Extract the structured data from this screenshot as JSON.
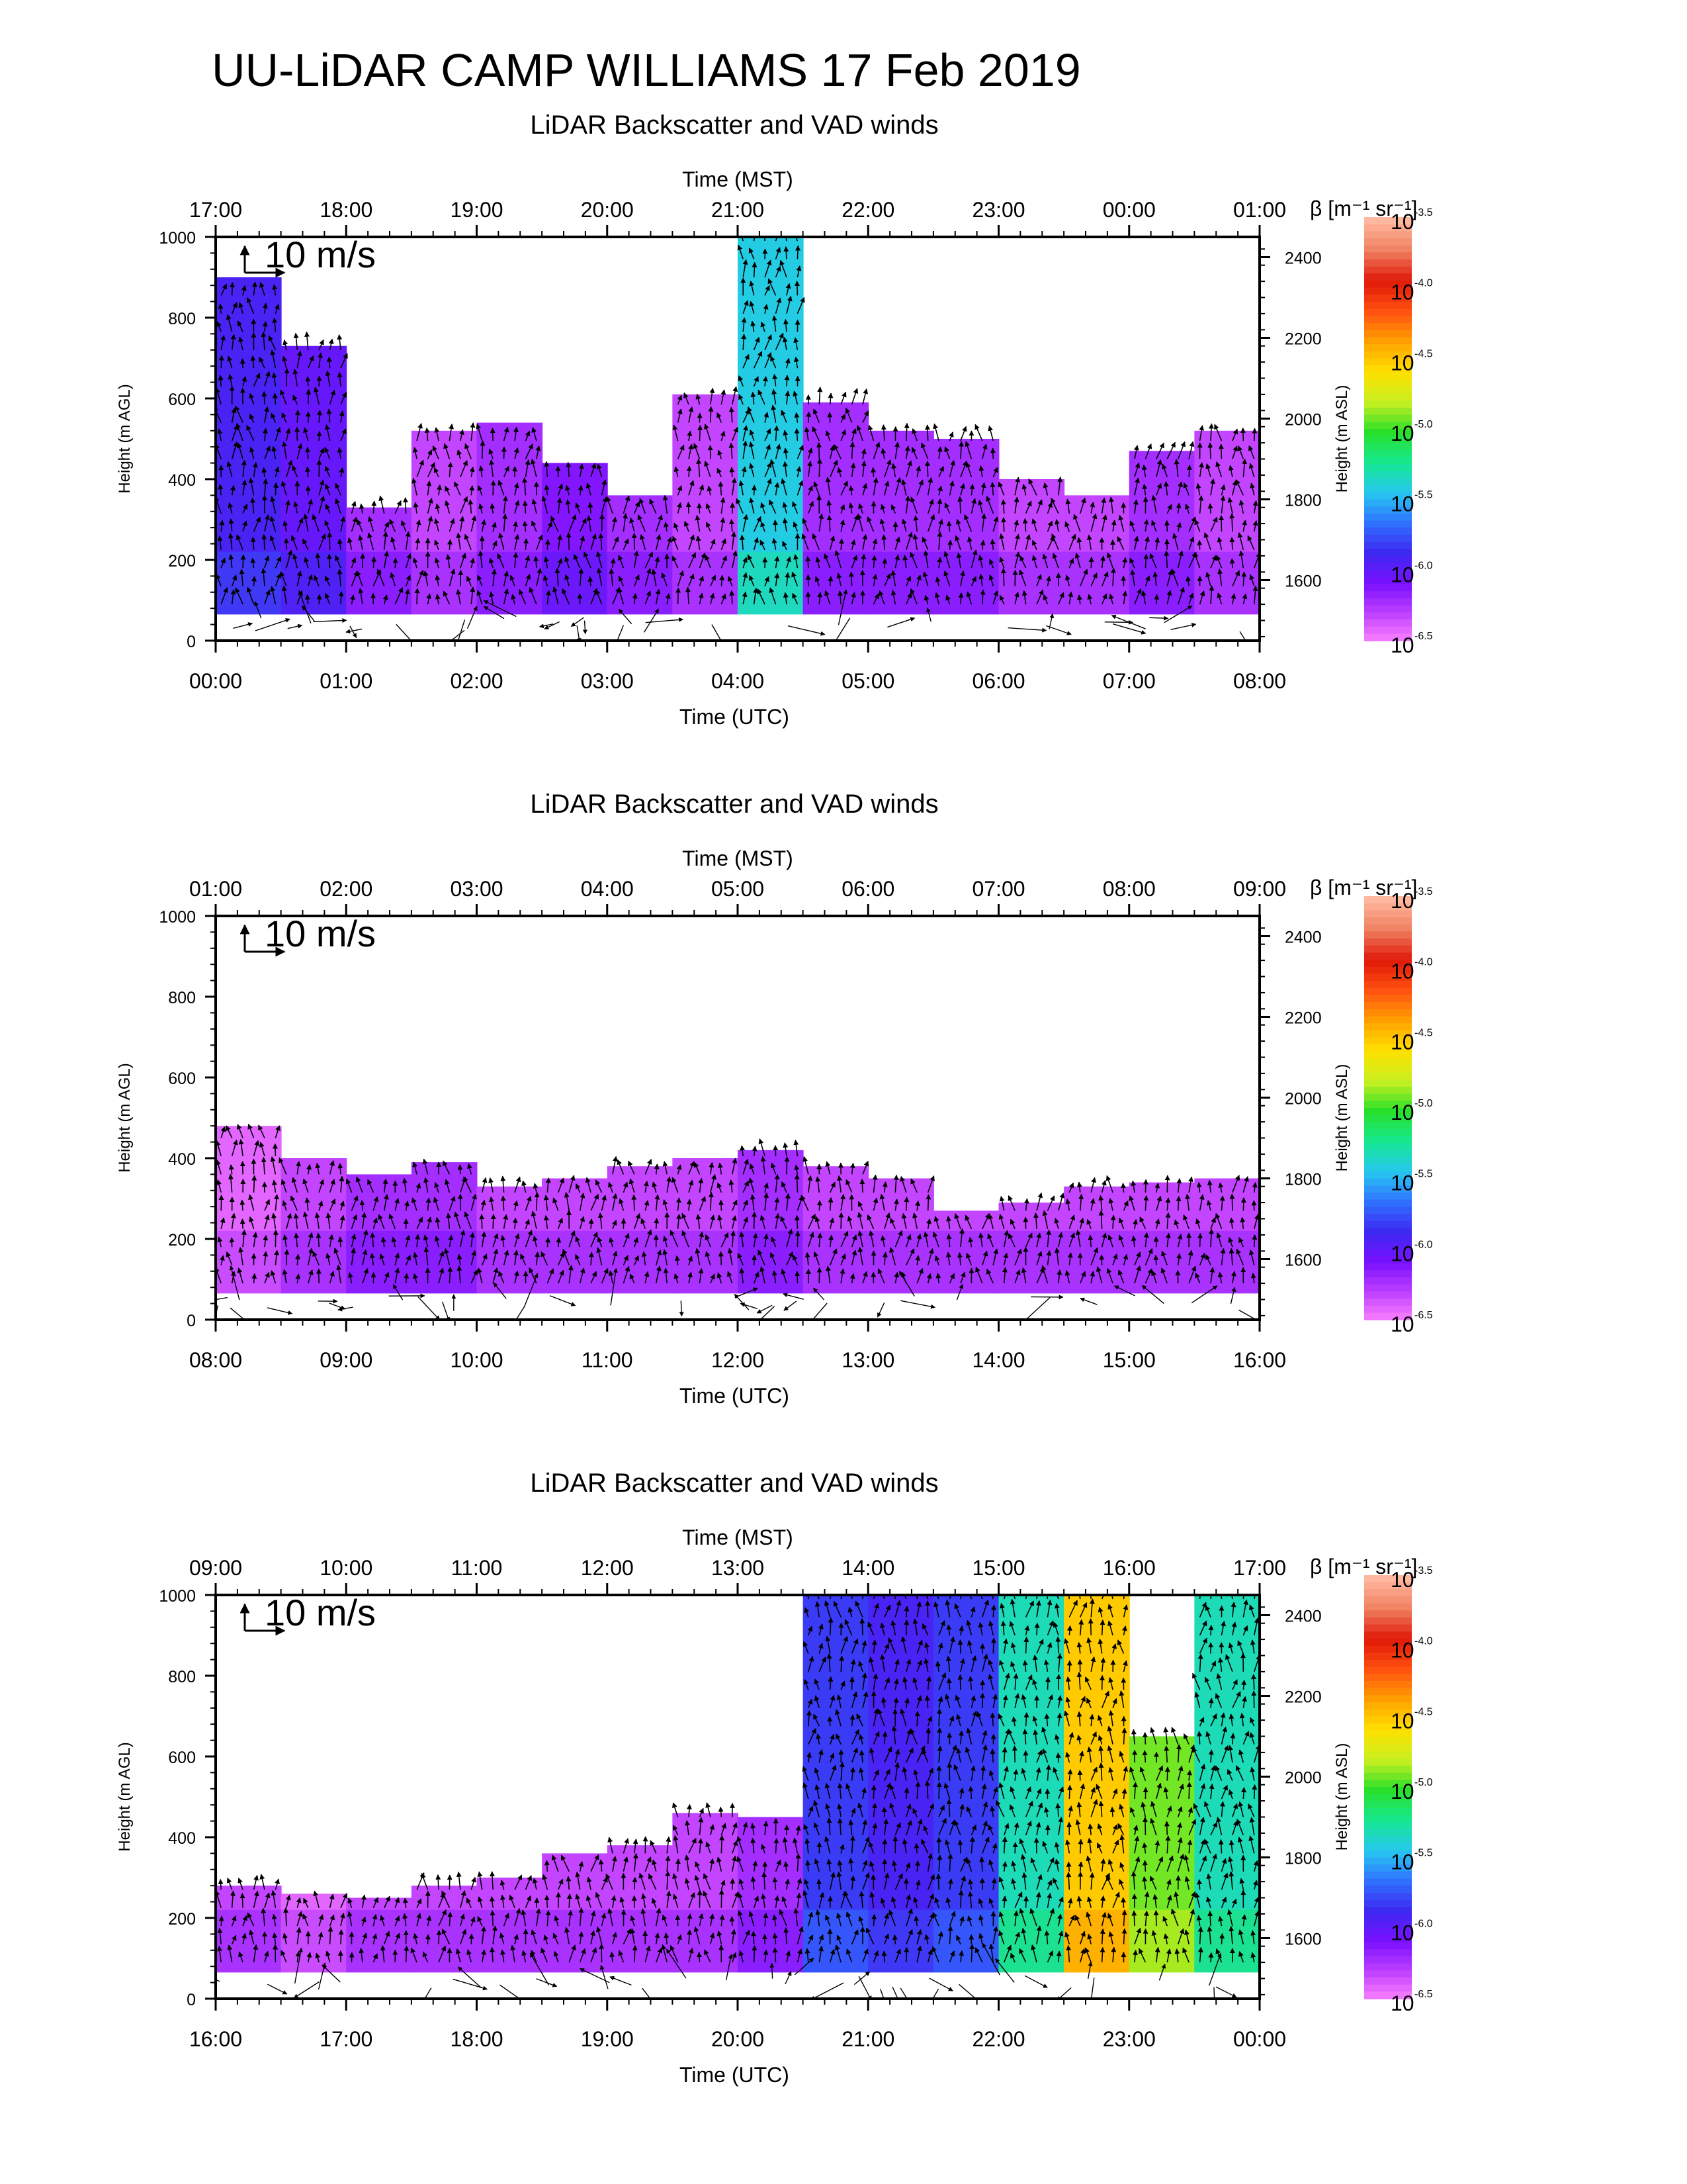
{
  "title": "UU-LiDAR CAMP WILLIAMS 17 Feb 2019",
  "colors": {
    "background": "#ffffff",
    "frame": "#000000",
    "colorbar_stops": [
      "#ff88ff",
      "#c040ff",
      "#7a10ff",
      "#3d28f0",
      "#3070ff",
      "#26c8f0",
      "#16e890",
      "#28e02a",
      "#c8f020",
      "#ffe000",
      "#ffa000",
      "#ff5010",
      "#e01808",
      "#f08060",
      "#ffb8a0"
    ]
  },
  "chart_data": [
    {
      "type": "heatmap",
      "title": "LiDAR Backscatter and VAD winds",
      "xlabel_bottom": "Time (UTC)",
      "xlabel_top": "Time (MST)",
      "ylabel_left": "Height (m AGL)",
      "ylabel_right": "Height (m ASL)",
      "x_ticks_bottom": [
        "00:00",
        "01:00",
        "02:00",
        "03:00",
        "04:00",
        "05:00",
        "06:00",
        "07:00",
        "08:00"
      ],
      "x_ticks_top": [
        "17:00",
        "18:00",
        "19:00",
        "20:00",
        "21:00",
        "22:00",
        "23:00",
        "00:00",
        "01:00"
      ],
      "y_ticks_left": [
        "0",
        "200",
        "400",
        "600",
        "800",
        "1000"
      ],
      "y_ticks_right": [
        "1600",
        "1800",
        "2000",
        "2200",
        "2400"
      ],
      "ylim_agl": [
        0,
        1000
      ],
      "wind_scale": "10 m/s",
      "colorbar": {
        "label": "β [m⁻¹ sr⁻¹]",
        "exponents": [
          "-3.5",
          "-4.0",
          "-4.5",
          "-5.0",
          "-5.5",
          "-6.0",
          "-6.5"
        ],
        "base": "10",
        "scale": "log"
      },
      "columns_hours": [
        0.2,
        0.7,
        1.2,
        1.7,
        2.2,
        2.7,
        3.2,
        3.7,
        4.2,
        4.7,
        5.2,
        5.7,
        6.2,
        6.7,
        7.2,
        7.7
      ],
      "aerosol_top_m": [
        900,
        730,
        330,
        520,
        540,
        440,
        360,
        610,
        1000,
        590,
        520,
        500,
        400,
        360,
        470,
        520
      ],
      "backscatter_log10": [
        -5.9,
        -6.0,
        -6.2,
        -6.3,
        -6.2,
        -6.1,
        -6.2,
        -6.3,
        -5.4,
        -6.2,
        -6.2,
        -6.2,
        -6.3,
        -6.3,
        -6.2,
        -6.3
      ]
    },
    {
      "type": "heatmap",
      "title": "LiDAR Backscatter and VAD winds",
      "xlabel_bottom": "Time (UTC)",
      "xlabel_top": "Time (MST)",
      "ylabel_left": "Height (m AGL)",
      "ylabel_right": "Height (m ASL)",
      "x_ticks_bottom": [
        "08:00",
        "09:00",
        "10:00",
        "11:00",
        "12:00",
        "13:00",
        "14:00",
        "15:00",
        "16:00"
      ],
      "x_ticks_top": [
        "01:00",
        "02:00",
        "03:00",
        "04:00",
        "05:00",
        "06:00",
        "07:00",
        "08:00",
        "09:00"
      ],
      "y_ticks_left": [
        "0",
        "200",
        "400",
        "600",
        "800",
        "1000"
      ],
      "y_ticks_right": [
        "1600",
        "1800",
        "2000",
        "2200",
        "2400"
      ],
      "ylim_agl": [
        0,
        1000
      ],
      "wind_scale": "10 m/s",
      "colorbar": {
        "label": "β [m⁻¹ sr⁻¹]",
        "exponents": [
          "-3.5",
          "-4.0",
          "-4.5",
          "-5.0",
          "-5.5",
          "-6.0",
          "-6.5"
        ],
        "base": "10",
        "scale": "log"
      },
      "columns_hours": [
        8.2,
        8.7,
        9.2,
        9.7,
        10.2,
        10.7,
        11.2,
        11.7,
        12.2,
        12.7,
        13.2,
        13.7,
        14.2,
        14.7,
        15.2,
        15.7
      ],
      "aerosol_top_m": [
        480,
        400,
        360,
        390,
        330,
        350,
        380,
        400,
        420,
        380,
        350,
        270,
        290,
        330,
        340,
        350
      ],
      "backscatter_log10": [
        -6.4,
        -6.3,
        -6.2,
        -6.2,
        -6.3,
        -6.3,
        -6.3,
        -6.3,
        -6.2,
        -6.3,
        -6.3,
        -6.3,
        -6.3,
        -6.3,
        -6.3,
        -6.3
      ]
    },
    {
      "type": "heatmap",
      "title": "LiDAR Backscatter and VAD winds",
      "xlabel_bottom": "Time (UTC)",
      "xlabel_top": "Time (MST)",
      "ylabel_left": "Height (m AGL)",
      "ylabel_right": "Height (m ASL)",
      "x_ticks_bottom": [
        "16:00",
        "17:00",
        "18:00",
        "19:00",
        "20:00",
        "21:00",
        "22:00",
        "23:00",
        "00:00"
      ],
      "x_ticks_top": [
        "09:00",
        "10:00",
        "11:00",
        "12:00",
        "13:00",
        "14:00",
        "15:00",
        "16:00",
        "17:00"
      ],
      "y_ticks_left": [
        "0",
        "200",
        "400",
        "600",
        "800",
        "1000"
      ],
      "y_ticks_right": [
        "1600",
        "1800",
        "2000",
        "2200",
        "2400"
      ],
      "ylim_agl": [
        0,
        1000
      ],
      "wind_scale": "10 m/s",
      "colorbar": {
        "label": "β [m⁻¹ sr⁻¹]",
        "exponents": [
          "-3.5",
          "-4.0",
          "-4.5",
          "-5.0",
          "-5.5",
          "-6.0",
          "-6.5"
        ],
        "base": "10",
        "scale": "log"
      },
      "columns_hours": [
        16.2,
        16.7,
        17.2,
        17.7,
        18.2,
        18.7,
        19.2,
        19.7,
        20.2,
        20.7,
        21.2,
        21.7,
        22.2,
        22.7,
        23.2,
        23.7
      ],
      "aerosol_top_m": [
        280,
        260,
        250,
        280,
        300,
        360,
        380,
        460,
        450,
        1000,
        1000,
        1000,
        1000,
        1000,
        650,
        1000
      ],
      "backscatter_log10": [
        -6.3,
        -6.4,
        -6.3,
        -6.3,
        -6.3,
        -6.3,
        -6.3,
        -6.3,
        -6.2,
        -5.8,
        -5.9,
        -5.8,
        -5.3,
        -4.5,
        -4.9,
        -5.3
      ]
    }
  ]
}
